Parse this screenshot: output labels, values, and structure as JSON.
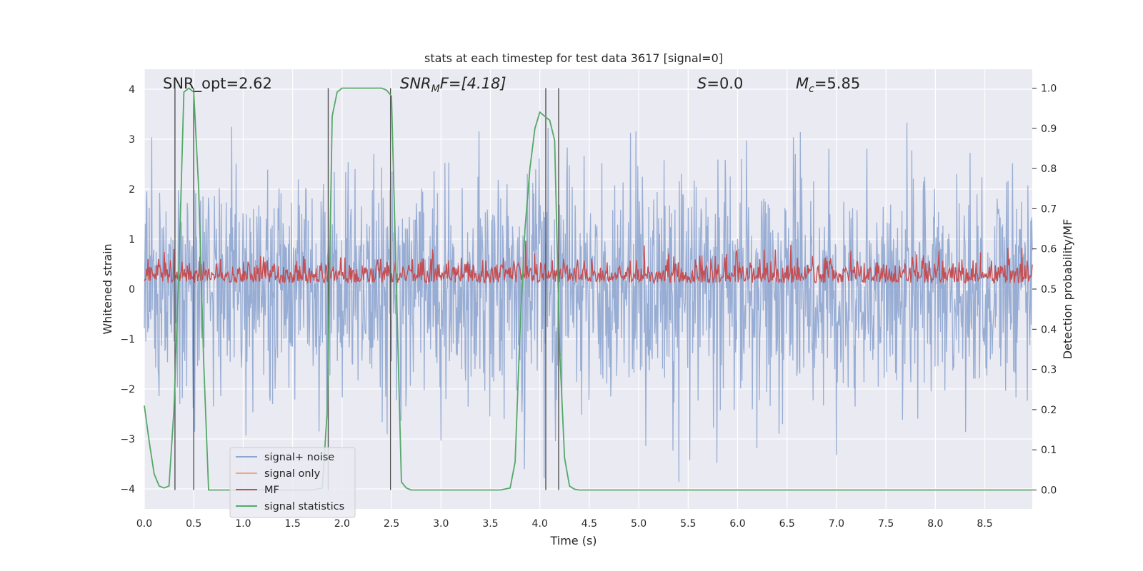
{
  "chart_data": {
    "type": "line",
    "title": "stats at each timestep for test data 3617 [signal=0]",
    "xlabel": "Time (s)",
    "ylabel": "Whitened strain",
    "y2label": "Detection probability/MF",
    "xlim": [
      0.0,
      8.98
    ],
    "ylim": [
      -4.4,
      4.4
    ],
    "y2lim": [
      -0.047,
      1.047
    ],
    "xticks": [
      0.0,
      0.5,
      1.0,
      1.5,
      2.0,
      2.5,
      3.0,
      3.5,
      4.0,
      4.5,
      5.0,
      5.5,
      6.0,
      6.5,
      7.0,
      7.5,
      8.0,
      8.5
    ],
    "xtick_labels": [
      "0.0",
      "0.5",
      "1.0",
      "1.5",
      "2.0",
      "2.5",
      "3.0",
      "3.5",
      "4.0",
      "4.5",
      "5.0",
      "5.5",
      "6.0",
      "6.5",
      "7.0",
      "7.5",
      "8.0",
      "8.5"
    ],
    "yticks": [
      4,
      3,
      2,
      1,
      0,
      -1,
      -2,
      -3,
      -4
    ],
    "ytick_labels": [
      "4",
      "3",
      "2",
      "1",
      "0",
      "−1",
      "−2",
      "−3",
      "−4"
    ],
    "y2ticks": [
      1.0,
      0.9,
      0.8,
      0.7,
      0.6,
      0.5,
      0.4,
      0.3,
      0.2,
      0.1,
      0.0
    ],
    "y2tick_labels": [
      "1.0",
      "0.9",
      "0.8",
      "0.7",
      "0.6",
      "0.5",
      "0.4",
      "0.3",
      "0.2",
      "0.1",
      "0.0"
    ],
    "annotations": {
      "snr_opt": "SNR_opt=2.62",
      "snr_mf_prefix": "SNR",
      "snr_mf_sub": "M",
      "snr_mf_suffix": "F=[4.18]",
      "s_prefix": "S",
      "s_suffix": "=0.0",
      "mc_prefix": "M",
      "mc_sub": "c",
      "mc_suffix": "=5.85"
    },
    "vertical_lines": [
      0.31,
      0.5,
      1.86,
      2.49,
      4.06,
      4.19
    ],
    "series": [
      {
        "name": "signal+ noise",
        "color": "#8fa6d0",
        "description": "whitened noise, roughly within -3.5..3.5 with occasional excursions to about ±4",
        "noise_amplitude_std": 1.0,
        "samples": 1800,
        "axis": "left"
      },
      {
        "name": "signal only",
        "color": "#eba78b",
        "axis": "left",
        "values": []
      },
      {
        "name": "MF",
        "color": "#c44e52",
        "axis": "right",
        "description": "matched-filter output fluctuating around 0.53, range about 0.5–0.62",
        "mean": 0.53
      },
      {
        "name": "signal statistics",
        "color": "#55a868",
        "axis": "right",
        "x": [
          0.0,
          0.05,
          0.1,
          0.15,
          0.2,
          0.25,
          0.3,
          0.35,
          0.4,
          0.45,
          0.5,
          0.55,
          0.6,
          0.65,
          0.7,
          0.75,
          0.8,
          0.85,
          0.9,
          1.0,
          1.2,
          1.5,
          1.7,
          1.8,
          1.85,
          1.9,
          1.95,
          2.0,
          2.1,
          2.2,
          2.3,
          2.4,
          2.45,
          2.5,
          2.55,
          2.6,
          2.65,
          2.7,
          2.8,
          3.0,
          3.3,
          3.6,
          3.7,
          3.75,
          3.8,
          3.85,
          3.9,
          3.95,
          4.0,
          4.05,
          4.1,
          4.15,
          4.2,
          4.25,
          4.3,
          4.35,
          4.4,
          4.5,
          5.0,
          6.0,
          7.0,
          8.0,
          8.98
        ],
        "y": [
          0.21,
          0.12,
          0.04,
          0.01,
          0.005,
          0.01,
          0.2,
          0.55,
          0.99,
          1.0,
          0.99,
          0.75,
          0.32,
          0.0,
          0.0,
          0.0,
          0.0,
          0.0,
          0.0,
          0.0,
          0.0,
          0.0,
          0.0,
          0.005,
          0.2,
          0.93,
          0.99,
          1.0,
          1.0,
          1.0,
          1.0,
          1.0,
          0.995,
          0.98,
          0.5,
          0.02,
          0.005,
          0.0,
          0.0,
          0.0,
          0.0,
          0.0,
          0.005,
          0.07,
          0.4,
          0.65,
          0.8,
          0.9,
          0.94,
          0.93,
          0.92,
          0.87,
          0.35,
          0.08,
          0.01,
          0.002,
          0.0,
          0.0,
          0.0,
          0.0,
          0.0,
          0.0,
          0.0
        ]
      }
    ],
    "legend": {
      "location": "lower-left",
      "entries": [
        "signal+ noise",
        "signal only",
        "MF",
        "signal statistics"
      ]
    },
    "grid": true,
    "colors": {
      "plot_bg": "#eaeaf2",
      "grid": "#ffffff",
      "vline": "#555555"
    }
  }
}
